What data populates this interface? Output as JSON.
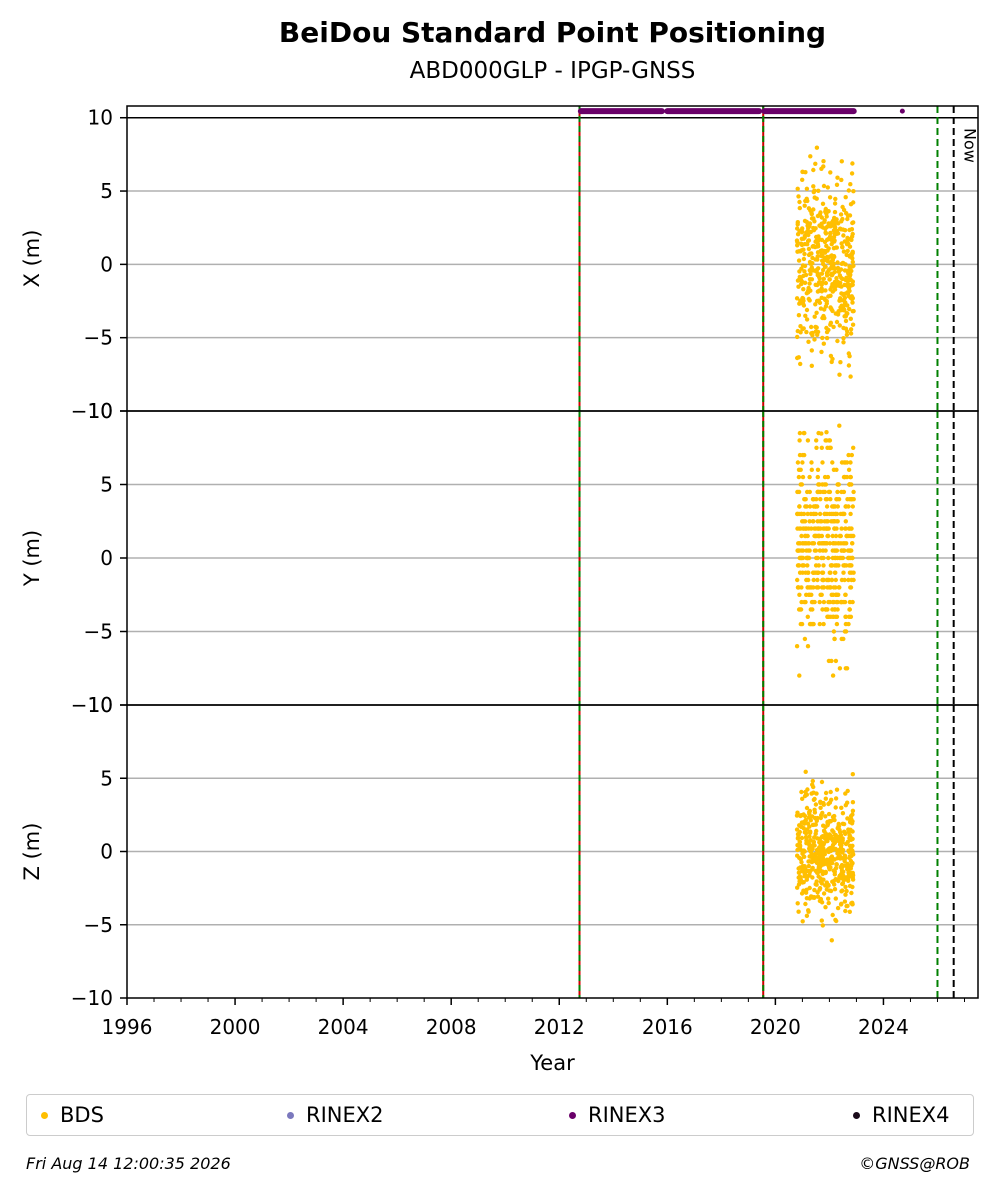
{
  "chart_data": {
    "type": "scatter",
    "title": "BeiDou Standard Point Positioning",
    "subtitle": "ABD000GLP - IPGP-GNSS",
    "xlabel": "Year",
    "xlim": [
      1996,
      2027.5
    ],
    "x_ticks": [
      "1996",
      "2000",
      "2004",
      "2008",
      "2012",
      "2016",
      "2020",
      "2024"
    ],
    "grid": "horizontal",
    "panels": [
      {
        "ylabel": "X (m)",
        "ylim": [
          -10,
          10.8
        ],
        "y_ticks": [
          "10",
          "5",
          "0",
          "−5",
          "−10"
        ],
        "points_center": 0,
        "points_spread": 3
      },
      {
        "ylabel": "Y (m)",
        "ylim": [
          -10,
          10
        ],
        "y_ticks": [
          "10",
          "5",
          "0",
          "−5",
          "−10"
        ],
        "points_center": 1,
        "points_spread": 3.5
      },
      {
        "ylabel": "Z (m)",
        "ylim": [
          -10,
          10
        ],
        "y_ticks": [
          "10",
          "5",
          "0",
          "−5",
          "−10"
        ],
        "points_center": 0,
        "points_spread": 2
      }
    ],
    "bds_series": {
      "name": "BDS",
      "color": "#ffbf00",
      "x_range": [
        2020.8,
        2022.9
      ]
    },
    "rinex3_segments": [
      [
        2012.8,
        2015.8
      ],
      [
        2016.0,
        2019.4
      ],
      [
        2019.6,
        2022.9
      ]
    ],
    "rinex3_point": 2024.7,
    "event_lines": [
      {
        "x": 2012.75,
        "style": "red-green",
        "color": "#008000"
      },
      {
        "x": 2019.55,
        "style": "red-green",
        "color": "#008000"
      },
      {
        "x": 2026.0,
        "style": "dashed",
        "color": "#008000"
      },
      {
        "x": 2026.6,
        "style": "dashed",
        "color": "#000000"
      }
    ],
    "now_label": "Now",
    "legend": [
      {
        "name": "BDS",
        "color": "#ffbf00"
      },
      {
        "name": "RINEX2",
        "color": "#7b78bd"
      },
      {
        "name": "RINEX3",
        "color": "#6a0069"
      },
      {
        "name": "RINEX4",
        "color": "#1a0a1a"
      }
    ]
  },
  "footer": {
    "timestamp": "Fri Aug 14 12:00:35 2026",
    "credit": "©GNSS@ROB"
  }
}
